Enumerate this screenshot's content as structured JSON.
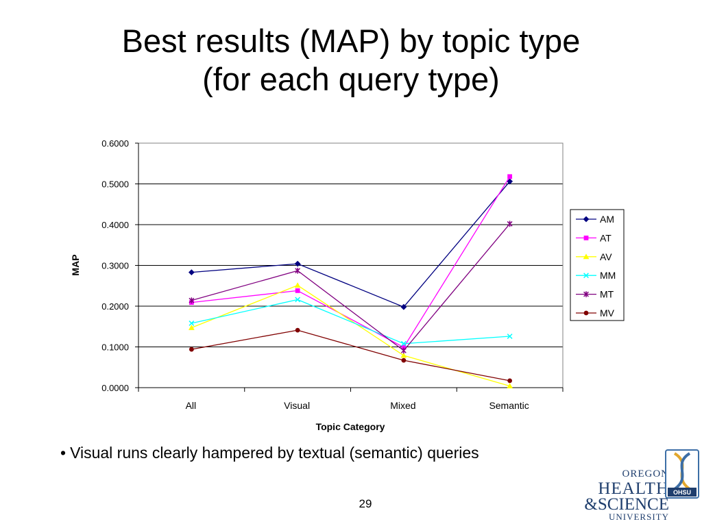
{
  "slide": {
    "title_line1": "Best results (MAP) by topic type",
    "title_line2": "(for each query type)",
    "bullet": "Visual runs clearly hampered by textual (semantic) queries",
    "page_number": "29",
    "logo": {
      "line1": "OREGON",
      "line2": "HEALTH",
      "line3": "&SCIENCE",
      "line4": "UNIVERSITY",
      "badge": "OHSU"
    }
  },
  "chart_data": {
    "type": "line",
    "title": "",
    "xlabel": "Topic Category",
    "ylabel": "MAP",
    "categories": [
      "All",
      "Visual",
      "Mixed",
      "Semantic"
    ],
    "ylim": [
      0,
      0.6
    ],
    "yticks": [
      "0.0000",
      "0.1000",
      "0.2000",
      "0.3000",
      "0.4000",
      "0.5000",
      "0.6000"
    ],
    "grid": "horizontal",
    "legend": "right",
    "series": [
      {
        "name": "AM",
        "color": "#000080",
        "marker": "diamond",
        "values": [
          0.283,
          0.304,
          0.198,
          0.506
        ]
      },
      {
        "name": "AT",
        "color": "#ff00ff",
        "marker": "square",
        "values": [
          0.209,
          0.238,
          0.099,
          0.518
        ]
      },
      {
        "name": "AV",
        "color": "#ffff00",
        "marker": "triangle",
        "values": [
          0.147,
          0.251,
          0.079,
          0.004
        ]
      },
      {
        "name": "MM",
        "color": "#00ffff",
        "marker": "x",
        "values": [
          0.158,
          0.216,
          0.108,
          0.126
        ]
      },
      {
        "name": "MT",
        "color": "#800080",
        "marker": "star",
        "values": [
          0.214,
          0.287,
          0.091,
          0.402
        ]
      },
      {
        "name": "MV",
        "color": "#800000",
        "marker": "circle",
        "values": [
          0.094,
          0.141,
          0.067,
          0.017
        ]
      }
    ]
  }
}
